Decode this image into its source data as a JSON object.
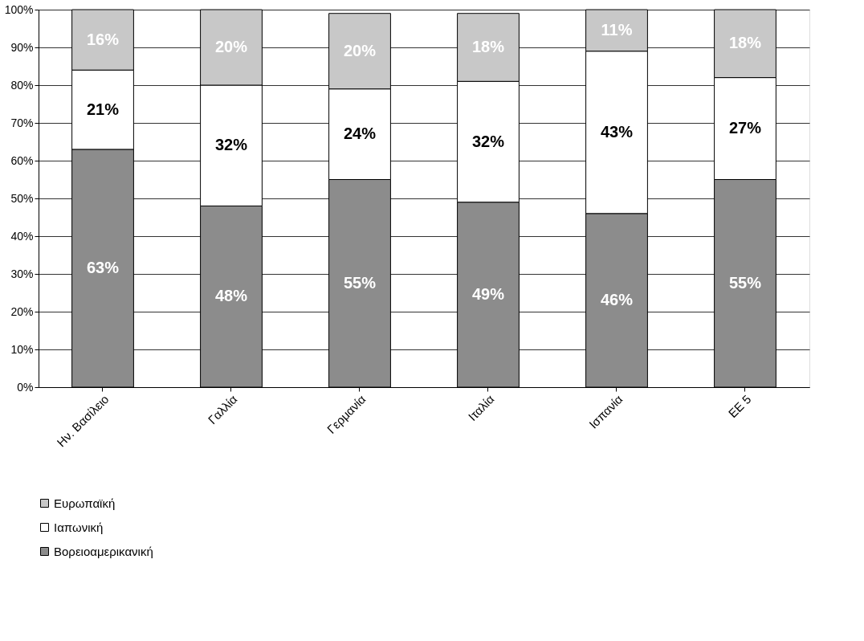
{
  "chart_data": {
    "type": "bar",
    "stacked": true,
    "categories": [
      "Ην. Βασίλειο",
      "Γαλλία",
      "Γερμανία",
      "Ιταλία",
      "Ισπανία",
      "ΕΕ 5"
    ],
    "series": [
      {
        "name": "Βορειοαμερικανική",
        "color": "#8c8c8c",
        "values": [
          63,
          48,
          55,
          49,
          46,
          55
        ],
        "value_labels": [
          "63%",
          "48%",
          "55%",
          "49%",
          "46%",
          "55%"
        ]
      },
      {
        "name": "Ιαπωνική",
        "color": "#ffffff",
        "values": [
          21,
          32,
          24,
          32,
          43,
          27
        ],
        "value_labels": [
          "21%",
          "32%",
          "24%",
          "32%",
          "43%",
          "27%"
        ]
      },
      {
        "name": "Ευρωπαϊκή",
        "color": "#c8c8c8",
        "values": [
          16,
          20,
          20,
          18,
          11,
          18
        ],
        "value_labels": [
          "16%",
          "20%",
          "20%",
          "18%",
          "11%",
          "18%"
        ]
      }
    ],
    "ylim": [
      0,
      100
    ],
    "yticks": [
      {
        "value": 0,
        "label": "0%"
      },
      {
        "value": 10,
        "label": "10%"
      },
      {
        "value": 20,
        "label": "20%"
      },
      {
        "value": 30,
        "label": "30%"
      },
      {
        "value": 40,
        "label": "40%"
      },
      {
        "value": 50,
        "label": "50%"
      },
      {
        "value": 60,
        "label": "60%"
      },
      {
        "value": 70,
        "label": "70%"
      },
      {
        "value": 80,
        "label": "80%"
      },
      {
        "value": 90,
        "label": "90%"
      },
      {
        "value": 100,
        "label": "100%"
      }
    ],
    "grid": "y",
    "legend": "bottom"
  }
}
